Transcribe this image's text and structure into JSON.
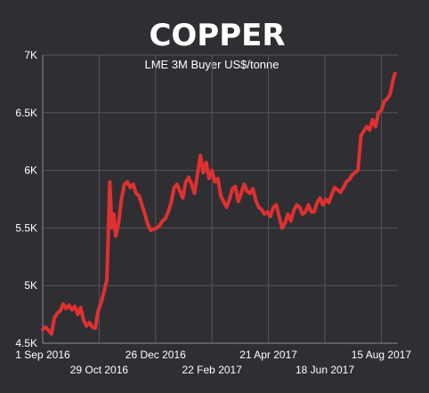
{
  "chart_data": {
    "type": "line",
    "title": "COPPER",
    "subtitle": "LME 3M Buyer US$/tonne",
    "xlabel": "",
    "ylabel": "",
    "grid": true,
    "ylim": [
      4500,
      7000
    ],
    "xlim": [
      "2016-09-01",
      "2017-09-01"
    ],
    "y_ticks": [
      {
        "value": 4500,
        "label": "4.5K"
      },
      {
        "value": 5000,
        "label": "5K"
      },
      {
        "value": 5500,
        "label": "5.5K"
      },
      {
        "value": 6000,
        "label": "6K"
      },
      {
        "value": 6500,
        "label": "6.5K"
      },
      {
        "value": 7000,
        "label": "7K"
      }
    ],
    "x_ticks": [
      {
        "date": "2016-09-01",
        "label": "1 Sep 2016",
        "row": 1
      },
      {
        "date": "2016-10-29",
        "label": "29 Oct 2016",
        "row": 2
      },
      {
        "date": "2016-12-26",
        "label": "26 Dec 2016",
        "row": 1
      },
      {
        "date": "2017-02-22",
        "label": "22 Feb 2017",
        "row": 2
      },
      {
        "date": "2017-04-21",
        "label": "21 Apr 2017",
        "row": 1
      },
      {
        "date": "2017-06-18",
        "label": "18 Jun 2017",
        "row": 2
      },
      {
        "date": "2017-08-15",
        "label": "15 Aug 2017",
        "row": 1
      }
    ],
    "series": [
      {
        "name": "",
        "color": "#e03131",
        "points": [
          [
            "2016-09-01",
            4620
          ],
          [
            "2016-09-04",
            4640
          ],
          [
            "2016-09-07",
            4610
          ],
          [
            "2016-09-10",
            4580
          ],
          [
            "2016-09-13",
            4720
          ],
          [
            "2016-09-16",
            4760
          ],
          [
            "2016-09-19",
            4780
          ],
          [
            "2016-09-22",
            4840
          ],
          [
            "2016-09-25",
            4800
          ],
          [
            "2016-09-28",
            4830
          ],
          [
            "2016-10-01",
            4790
          ],
          [
            "2016-10-04",
            4820
          ],
          [
            "2016-10-07",
            4750
          ],
          [
            "2016-10-10",
            4810
          ],
          [
            "2016-10-13",
            4700
          ],
          [
            "2016-10-16",
            4650
          ],
          [
            "2016-10-19",
            4680
          ],
          [
            "2016-10-22",
            4640
          ],
          [
            "2016-10-25",
            4630
          ],
          [
            "2016-10-28",
            4780
          ],
          [
            "2016-10-31",
            4850
          ],
          [
            "2016-11-03",
            4950
          ],
          [
            "2016-11-06",
            5050
          ],
          [
            "2016-11-09",
            5900
          ],
          [
            "2016-11-11",
            5500
          ],
          [
            "2016-11-13",
            5620
          ],
          [
            "2016-11-15",
            5430
          ],
          [
            "2016-11-18",
            5550
          ],
          [
            "2016-11-21",
            5750
          ],
          [
            "2016-11-24",
            5880
          ],
          [
            "2016-11-27",
            5900
          ],
          [
            "2016-11-30",
            5850
          ],
          [
            "2016-12-03",
            5880
          ],
          [
            "2016-12-06",
            5800
          ],
          [
            "2016-12-09",
            5780
          ],
          [
            "2016-12-12",
            5700
          ],
          [
            "2016-12-15",
            5620
          ],
          [
            "2016-12-18",
            5530
          ],
          [
            "2016-12-21",
            5480
          ],
          [
            "2016-12-24",
            5490
          ],
          [
            "2016-12-27",
            5500
          ],
          [
            "2016-12-30",
            5520
          ],
          [
            "2017-01-02",
            5560
          ],
          [
            "2017-01-05",
            5580
          ],
          [
            "2017-01-08",
            5640
          ],
          [
            "2017-01-11",
            5720
          ],
          [
            "2017-01-14",
            5850
          ],
          [
            "2017-01-17",
            5880
          ],
          [
            "2017-01-20",
            5820
          ],
          [
            "2017-01-23",
            5760
          ],
          [
            "2017-01-26",
            5900
          ],
          [
            "2017-01-29",
            5940
          ],
          [
            "2017-02-01",
            5880
          ],
          [
            "2017-02-04",
            5800
          ],
          [
            "2017-02-07",
            5960
          ],
          [
            "2017-02-10",
            6130
          ],
          [
            "2017-02-13",
            5980
          ],
          [
            "2017-02-16",
            6070
          ],
          [
            "2017-02-19",
            5930
          ],
          [
            "2017-02-22",
            6000
          ],
          [
            "2017-02-25",
            5900
          ],
          [
            "2017-02-28",
            5930
          ],
          [
            "2017-03-03",
            5780
          ],
          [
            "2017-03-06",
            5730
          ],
          [
            "2017-03-09",
            5680
          ],
          [
            "2017-03-12",
            5750
          ],
          [
            "2017-03-15",
            5840
          ],
          [
            "2017-03-18",
            5860
          ],
          [
            "2017-03-21",
            5730
          ],
          [
            "2017-03-24",
            5800
          ],
          [
            "2017-03-27",
            5880
          ],
          [
            "2017-03-30",
            5820
          ],
          [
            "2017-04-02",
            5800
          ],
          [
            "2017-04-05",
            5840
          ],
          [
            "2017-04-08",
            5740
          ],
          [
            "2017-04-11",
            5680
          ],
          [
            "2017-04-14",
            5660
          ],
          [
            "2017-04-17",
            5620
          ],
          [
            "2017-04-20",
            5640
          ],
          [
            "2017-04-23",
            5600
          ],
          [
            "2017-04-26",
            5680
          ],
          [
            "2017-04-29",
            5700
          ],
          [
            "2017-05-02",
            5600
          ],
          [
            "2017-05-05",
            5500
          ],
          [
            "2017-05-08",
            5540
          ],
          [
            "2017-05-11",
            5620
          ],
          [
            "2017-05-14",
            5560
          ],
          [
            "2017-05-17",
            5650
          ],
          [
            "2017-05-20",
            5700
          ],
          [
            "2017-05-23",
            5680
          ],
          [
            "2017-05-26",
            5620
          ],
          [
            "2017-05-29",
            5640
          ],
          [
            "2017-06-01",
            5700
          ],
          [
            "2017-06-04",
            5640
          ],
          [
            "2017-06-07",
            5640
          ],
          [
            "2017-06-10",
            5720
          ],
          [
            "2017-06-13",
            5760
          ],
          [
            "2017-06-16",
            5700
          ],
          [
            "2017-06-19",
            5750
          ],
          [
            "2017-06-22",
            5720
          ],
          [
            "2017-06-25",
            5790
          ],
          [
            "2017-06-28",
            5850
          ],
          [
            "2017-07-01",
            5830
          ],
          [
            "2017-07-04",
            5810
          ],
          [
            "2017-07-07",
            5850
          ],
          [
            "2017-07-10",
            5900
          ],
          [
            "2017-07-13",
            5920
          ],
          [
            "2017-07-16",
            5960
          ],
          [
            "2017-07-19",
            5980
          ],
          [
            "2017-07-22",
            6000
          ],
          [
            "2017-07-25",
            6300
          ],
          [
            "2017-07-28",
            6340
          ],
          [
            "2017-07-31",
            6380
          ],
          [
            "2017-08-03",
            6350
          ],
          [
            "2017-08-06",
            6440
          ],
          [
            "2017-08-09",
            6380
          ],
          [
            "2017-08-12",
            6500
          ],
          [
            "2017-08-15",
            6520
          ],
          [
            "2017-08-18",
            6600
          ],
          [
            "2017-08-21",
            6620
          ],
          [
            "2017-08-24",
            6660
          ],
          [
            "2017-08-27",
            6780
          ],
          [
            "2017-08-29",
            6840
          ]
        ]
      }
    ]
  }
}
